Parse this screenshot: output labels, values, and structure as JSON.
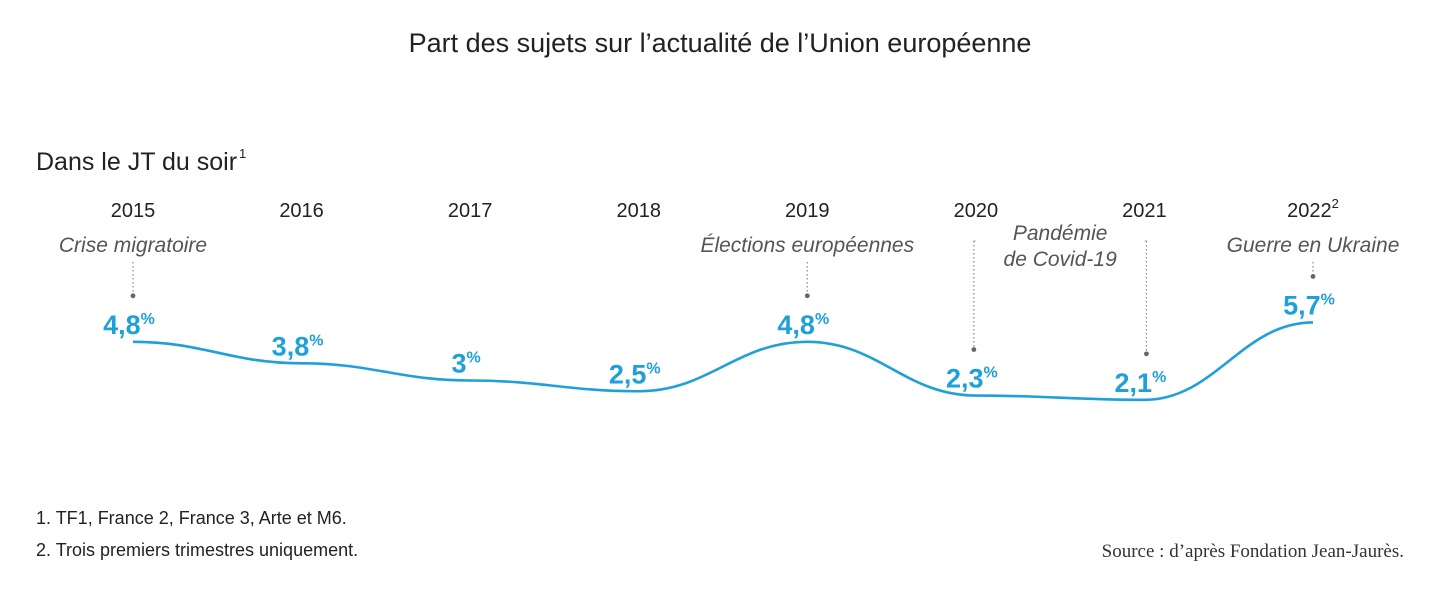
{
  "title": "Part des sujets sur l’actualité de l’Union européenne",
  "subtitle": "Dans le JT du soir",
  "subtitle_sup": "1",
  "notes": [
    "1. TF1, France 2, France 3, Arte et M6.",
    "2. Trois premiers trimestres uniquement."
  ],
  "source": "Source : d’après Fondation Jean-Jaurès.",
  "colors": {
    "line": "#1fa0d8",
    "text": "#222222",
    "event": "#555555"
  },
  "chart_data": {
    "type": "line",
    "title": "Part des sujets sur l’actualité de l’Union européenne",
    "xlabel": "",
    "ylabel": "",
    "categories": [
      "2015",
      "2016",
      "2017",
      "2018",
      "2019",
      "2020",
      "2021",
      "2022"
    ],
    "category_sup": [
      "",
      "",
      "",
      "",
      "",
      "",
      "",
      "2"
    ],
    "series": [
      {
        "name": "Dans le JT du soir",
        "values": [
          4.8,
          3.8,
          3.0,
          2.5,
          4.8,
          2.3,
          2.1,
          5.7
        ],
        "labels": [
          "4,8",
          "3,8",
          "3",
          "2,5",
          "4,8",
          "2,3",
          "2,1",
          "5,7"
        ],
        "unit": "%"
      }
    ],
    "annotations": [
      {
        "text": "Crise migratoire",
        "category": "2015"
      },
      {
        "text": "Élections européennes",
        "category": "2019"
      },
      {
        "text": "Pandémie\nde Covid-19",
        "categories": [
          "2020",
          "2021"
        ]
      },
      {
        "text": "Guerre en Ukraine",
        "category": "2022"
      }
    ],
    "ylim": [
      0,
      6
    ],
    "grid": false,
    "legend": "none"
  }
}
